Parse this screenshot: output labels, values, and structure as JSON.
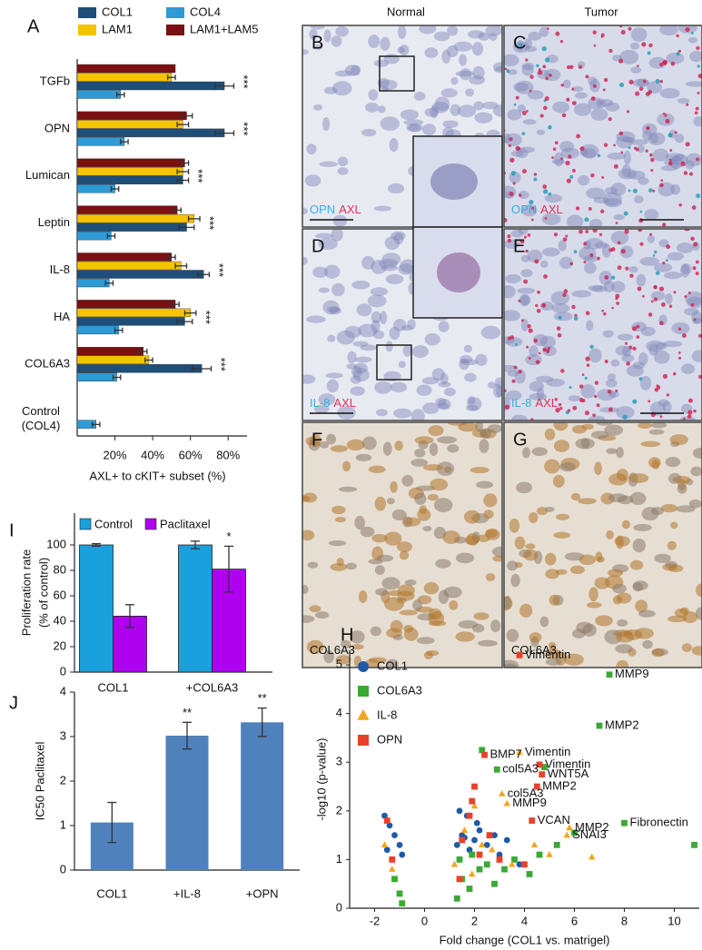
{
  "figure": {
    "columns": [
      "Normal",
      "Tumor"
    ],
    "panels": [
      {
        "letter": "B",
        "stain": [
          "OPN",
          "AXL"
        ]
      },
      {
        "letter": "C",
        "stain": [
          "OPN",
          "AXL"
        ]
      },
      {
        "letter": "D",
        "stain": [
          "IL-8",
          "AXL"
        ]
      },
      {
        "letter": "E",
        "stain": [
          "IL-8",
          "AXL"
        ]
      },
      {
        "letter": "F",
        "stain": [
          "COL6A3"
        ]
      },
      {
        "letter": "G",
        "stain": [
          "COL6A3"
        ]
      }
    ]
  },
  "chart_data": [
    {
      "type": "hbar",
      "label": "A",
      "xlabel": "AXL+ to cKIT+ subset (%)",
      "categories": [
        "TGFb",
        "OPN",
        "Lumican",
        "Leptin",
        "IL-8",
        "HA",
        "COL6A3",
        "Control (COL4)"
      ],
      "series": [
        {
          "name": "COL1",
          "color": "#1f4e79",
          "values": [
            78,
            78,
            56,
            58,
            67,
            57,
            66,
            null
          ],
          "errors": [
            5,
            5,
            3,
            4,
            3,
            4,
            5,
            null
          ]
        },
        {
          "name": "COL4",
          "color": "#2e9bd6",
          "values": [
            23,
            25,
            20,
            18,
            17,
            22,
            21,
            10
          ],
          "errors": [
            2,
            2,
            2,
            2,
            2,
            2,
            2,
            2
          ]
        },
        {
          "name": "LAM1",
          "color": "#f5c400",
          "values": [
            50,
            56,
            56,
            62,
            55,
            60,
            38,
            null
          ],
          "errors": [
            2,
            3,
            3,
            3,
            3,
            3,
            2,
            null
          ]
        },
        {
          "name": "LAM1+LAM5",
          "color": "#7a1010",
          "values": [
            52,
            58,
            57,
            53,
            50,
            52,
            35,
            null
          ],
          "errors": [
            null,
            3,
            2,
            2,
            2,
            2,
            2,
            null
          ]
        }
      ],
      "annotations": [
        "***",
        "***",
        "***",
        "***",
        "***",
        "***",
        "***",
        null
      ],
      "xlim": [
        0,
        90
      ],
      "xticks": [
        {
          "value": 20,
          "label": "20%"
        },
        {
          "value": 40,
          "label": "40%"
        },
        {
          "value": 60,
          "label": "60%"
        },
        {
          "value": 80,
          "label": "80%"
        }
      ]
    },
    {
      "type": "bar",
      "label": "I",
      "ylabel": [
        "Proliferation rate",
        "(% of control)"
      ],
      "categories": [
        "COL1",
        "+COL6A3"
      ],
      "series": [
        {
          "name": "Control",
          "color": "#1aa0dc",
          "values": [
            100,
            100
          ],
          "errors": [
            1,
            3
          ]
        },
        {
          "name": "Paclitaxel",
          "color": "#b000f0",
          "values": [
            44,
            81
          ],
          "errors": [
            9,
            18
          ],
          "value_labels": [
            null,
            "*"
          ]
        }
      ],
      "ylim": [
        0,
        125
      ],
      "yticks": [
        0,
        20,
        40,
        60,
        80,
        100
      ]
    },
    {
      "type": "bar",
      "label": "J",
      "ylabel": [
        "IC50 Paclitaxel"
      ],
      "categories": [
        "COL1",
        "+IL-8",
        "+OPN"
      ],
      "series": [
        {
          "name": null,
          "color": "#4f81bd",
          "values": [
            1.07,
            3.02,
            3.32
          ],
          "errors": [
            0.45,
            0.3,
            0.32
          ],
          "value_labels": [
            null,
            "**",
            "**"
          ]
        }
      ],
      "ylim": [
        0,
        4
      ],
      "yticks": [
        0,
        1,
        2,
        3,
        4
      ]
    },
    {
      "type": "scatter",
      "label": "H",
      "xlabel": "Fold change (COL1 vs. matrigel)",
      "ylabel": "-log10 (p-value)",
      "series": [
        {
          "name": "COL1",
          "color": "#1f5aa6",
          "marker": "circle",
          "x": [
            -1.6,
            -1.4,
            -1.2,
            -1.0,
            -0.9,
            1.3,
            1.5,
            1.7,
            2.0,
            2.2,
            2.5,
            3.0,
            3.3,
            3.8,
            1.8,
            2.1,
            2.8,
            1.4,
            -1.5,
            1.6
          ],
          "values": [
            1.9,
            1.7,
            1.5,
            1.3,
            1.1,
            1.3,
            1.5,
            1.9,
            1.4,
            1.6,
            1.3,
            1.1,
            1.4,
            0.9,
            1.2,
            1.75,
            1.5,
            2.0,
            1.2,
            1.45
          ]
        },
        {
          "name": "COL6A3",
          "color": "#3aa935",
          "marker": "square",
          "x": [
            7.4,
            7.0,
            8.0,
            10.8,
            2.9,
            4.8,
            5.3,
            6.0,
            4.6,
            1.5,
            1.8,
            2.2,
            -1.2,
            -1.0,
            -0.9,
            1.4,
            2.5,
            3.2,
            1.9,
            2.8,
            3.6,
            1.3,
            4.2,
            2.3
          ],
          "values": [
            4.8,
            3.75,
            1.75,
            1.3,
            2.85,
            2.9,
            1.3,
            1.55,
            1.1,
            0.6,
            0.4,
            0.8,
            0.6,
            0.3,
            0.1,
            1.0,
            0.9,
            0.8,
            1.1,
            0.5,
            1.0,
            0.2,
            0.7,
            3.25
          ]
        },
        {
          "name": "IL-8",
          "color": "#f2a51f",
          "marker": "triangle",
          "x": [
            3.8,
            3.1,
            3.3,
            5.8,
            5.7,
            6.7,
            5.0,
            4.4,
            2.0,
            2.3,
            1.6,
            -1.3,
            -1.6,
            1.2,
            2.7,
            3.5,
            1.9
          ],
          "values": [
            3.2,
            2.35,
            2.15,
            1.65,
            1.5,
            1.05,
            1.1,
            1.3,
            2.1,
            1.3,
            1.6,
            0.8,
            1.3,
            0.9,
            1.2,
            0.9,
            0.7
          ]
        },
        {
          "name": "OPN",
          "color": "#e8412a",
          "marker": "square",
          "x": [
            3.8,
            2.4,
            4.6,
            4.7,
            4.5,
            4.3,
            1.9,
            2.0,
            1.8,
            1.5,
            -1.3,
            -1.5,
            2.2,
            2.6,
            3.0,
            1.4,
            4.0
          ],
          "values": [
            5.2,
            3.15,
            2.95,
            2.75,
            2.5,
            1.8,
            2.2,
            2.5,
            1.9,
            1.4,
            1.0,
            1.8,
            1.1,
            1.5,
            1.0,
            0.6,
            0.9
          ]
        }
      ],
      "annotations": [
        {
          "text": "Vimentin",
          "x": 3.8,
          "y": 5.2
        },
        {
          "text": "MMP9",
          "x": 7.4,
          "y": 4.8
        },
        {
          "text": "MMP2",
          "x": 7.0,
          "y": 3.75
        },
        {
          "text": "BMP7",
          "x": 2.4,
          "y": 3.15
        },
        {
          "text": "Vimentin",
          "x": 3.8,
          "y": 3.2
        },
        {
          "text": "col5A3",
          "x": 2.9,
          "y": 2.85
        },
        {
          "text": "Vimentin",
          "x": 4.6,
          "y": 2.95
        },
        {
          "text": "WNT5A",
          "x": 4.7,
          "y": 2.75
        },
        {
          "text": "MMP2",
          "x": 4.5,
          "y": 2.5
        },
        {
          "text": "col5A3",
          "x": 3.1,
          "y": 2.35
        },
        {
          "text": "MMP9",
          "x": 3.3,
          "y": 2.15
        },
        {
          "text": "VCAN",
          "x": 4.3,
          "y": 1.8
        },
        {
          "text": "MMP2",
          "x": 5.8,
          "y": 1.65
        },
        {
          "text": "SNAI3",
          "x": 5.7,
          "y": 1.5
        },
        {
          "text": "Fibronectin",
          "x": 8.0,
          "y": 1.75
        }
      ],
      "xlim": [
        -3,
        11
      ],
      "xticks": [
        -2,
        0,
        2,
        4,
        6,
        8,
        10
      ],
      "ylim": [
        0,
        5.3
      ],
      "yticks": [
        0,
        1,
        2,
        3,
        4,
        5
      ]
    }
  ]
}
